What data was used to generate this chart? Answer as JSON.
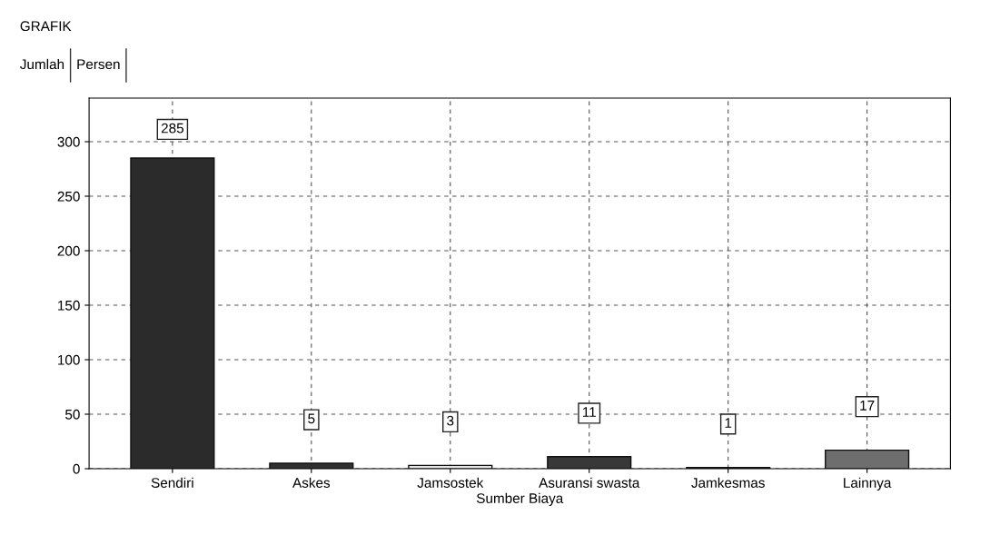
{
  "chart_data": {
    "type": "bar",
    "title": "GRAFIK",
    "annotations": [
      "Jumlah",
      "Persen"
    ],
    "categories": [
      "Sendiri",
      "Askes",
      "Jamsostek",
      "Asuransi swasta",
      "Jamkesmas",
      "Lainnya"
    ],
    "values": [
      285,
      5,
      3,
      11,
      1,
      17
    ],
    "colors": [
      "#2b2b2b",
      "#303030",
      "#e6e6e6",
      "#383838",
      "#f4f4f4",
      "#6e6e6e"
    ],
    "xlabel": "Sumber Biaya",
    "ylim": [
      0,
      340
    ],
    "yticks": [
      0,
      50,
      100,
      150,
      200,
      250,
      300
    ],
    "grid": true,
    "data_labels": true
  }
}
